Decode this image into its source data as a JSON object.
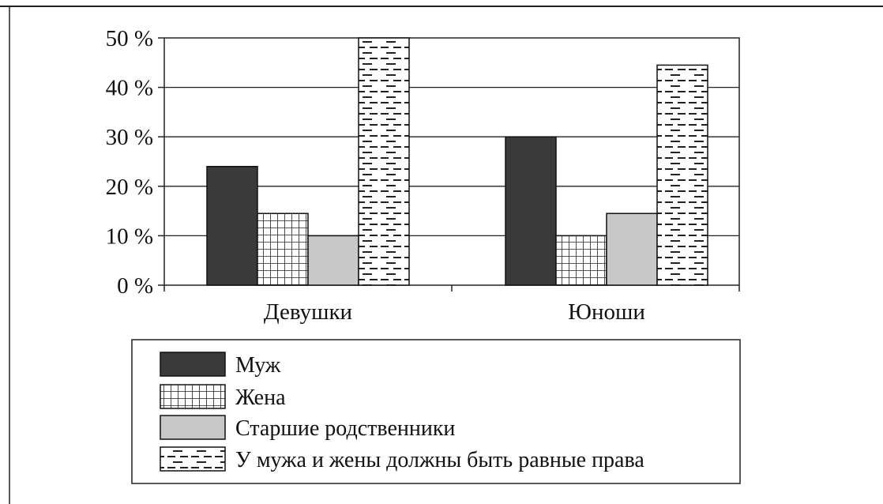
{
  "chart_data": {
    "type": "bar",
    "title": "",
    "xlabel": "",
    "ylabel": "",
    "categories": [
      "Девушки",
      "Юноши"
    ],
    "y_ticks": [
      "0 %",
      "10 %",
      "20 %",
      "30 %",
      "40 %",
      "50 %"
    ],
    "ylim": [
      0,
      50
    ],
    "grid": true,
    "legend_position": "bottom",
    "series": [
      {
        "name": "Муж",
        "values": [
          24,
          30
        ],
        "fill": "#3a3a3a",
        "pattern": "solid"
      },
      {
        "name": "Жена",
        "values": [
          14.5,
          10
        ],
        "fill": "#ffffff",
        "pattern": "grid"
      },
      {
        "name": "Старшие родственники",
        "values": [
          10,
          14.5
        ],
        "fill": "#c8c8c8",
        "pattern": "solid"
      },
      {
        "name": "У мужа и жены должны быть равные права",
        "values": [
          50,
          44.5
        ],
        "fill": "#ffffff",
        "pattern": "dashes"
      }
    ]
  }
}
